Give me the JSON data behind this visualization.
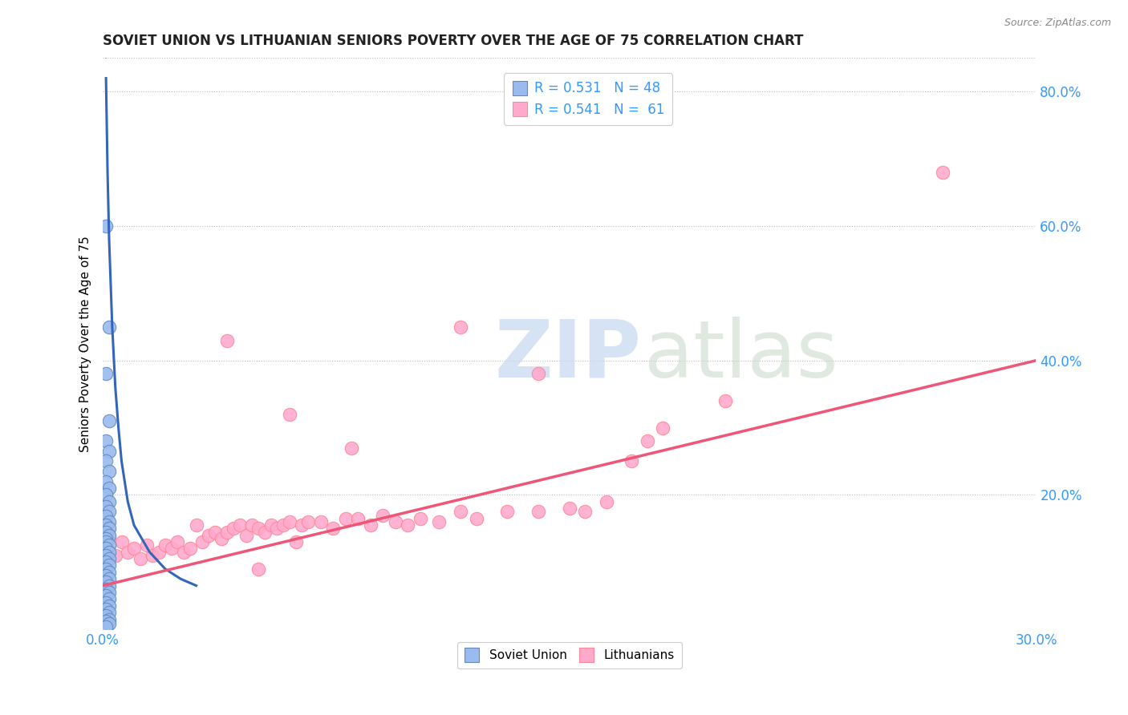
{
  "title": "SOVIET UNION VS LITHUANIAN SENIORS POVERTY OVER THE AGE OF 75 CORRELATION CHART",
  "source": "Source: ZipAtlas.com",
  "ylabel": "Seniors Poverty Over the Age of 75",
  "xlabel": "",
  "xlim": [
    0.0,
    0.3
  ],
  "ylim": [
    0.0,
    0.85
  ],
  "xtick_positions": [
    0.0,
    0.3
  ],
  "xtick_labels": [
    "0.0%",
    "30.0%"
  ],
  "ytick_positions": [
    0.2,
    0.4,
    0.6,
    0.8
  ],
  "ytick_labels": [
    "20.0%",
    "40.0%",
    "60.0%",
    "80.0%"
  ],
  "legend_color": "#3399ff",
  "soviet_color": "#99BBEE",
  "lith_color": "#FFAACC",
  "soviet_edge": "#6688BB",
  "lith_edge": "#FF8899",
  "trend_blue": "#3366BB",
  "trend_pink": "#EE5577",
  "background": "#ffffff",
  "grid_color": "#bbbbbb",
  "soviet_x": [
    0.001,
    0.002,
    0.001,
    0.002,
    0.001,
    0.002,
    0.001,
    0.002,
    0.001,
    0.002,
    0.001,
    0.002,
    0.001,
    0.002,
    0.001,
    0.002,
    0.001,
    0.002,
    0.001,
    0.002,
    0.001,
    0.001,
    0.002,
    0.001,
    0.002,
    0.001,
    0.002,
    0.001,
    0.002,
    0.001,
    0.002,
    0.001,
    0.002,
    0.001,
    0.002,
    0.001,
    0.002,
    0.001,
    0.002,
    0.001,
    0.002,
    0.001,
    0.002,
    0.001,
    0.002,
    0.001,
    0.002,
    0.001
  ],
  "soviet_y": [
    0.6,
    0.45,
    0.38,
    0.31,
    0.28,
    0.265,
    0.25,
    0.235,
    0.22,
    0.21,
    0.2,
    0.19,
    0.182,
    0.175,
    0.168,
    0.16,
    0.155,
    0.15,
    0.145,
    0.14,
    0.135,
    0.13,
    0.125,
    0.12,
    0.115,
    0.11,
    0.105,
    0.1,
    0.095,
    0.09,
    0.085,
    0.08,
    0.075,
    0.07,
    0.065,
    0.06,
    0.055,
    0.05,
    0.045,
    0.04,
    0.035,
    0.03,
    0.025,
    0.02,
    0.015,
    0.012,
    0.008,
    0.004
  ],
  "lith_x": [
    0.002,
    0.004,
    0.006,
    0.008,
    0.01,
    0.012,
    0.014,
    0.016,
    0.018,
    0.02,
    0.022,
    0.024,
    0.026,
    0.028,
    0.03,
    0.032,
    0.034,
    0.036,
    0.038,
    0.04,
    0.042,
    0.044,
    0.046,
    0.048,
    0.05,
    0.052,
    0.054,
    0.056,
    0.058,
    0.06,
    0.062,
    0.064,
    0.066,
    0.07,
    0.074,
    0.078,
    0.082,
    0.086,
    0.09,
    0.094,
    0.098,
    0.102,
    0.108,
    0.115,
    0.12,
    0.13,
    0.14,
    0.15,
    0.155,
    0.162,
    0.17,
    0.175,
    0.18,
    0.2,
    0.27,
    0.115,
    0.14,
    0.08,
    0.04,
    0.06,
    0.05
  ],
  "lith_y": [
    0.135,
    0.11,
    0.13,
    0.115,
    0.12,
    0.105,
    0.125,
    0.11,
    0.115,
    0.125,
    0.12,
    0.13,
    0.115,
    0.12,
    0.155,
    0.13,
    0.14,
    0.145,
    0.135,
    0.145,
    0.15,
    0.155,
    0.14,
    0.155,
    0.15,
    0.145,
    0.155,
    0.15,
    0.155,
    0.16,
    0.13,
    0.155,
    0.16,
    0.16,
    0.15,
    0.165,
    0.165,
    0.155,
    0.17,
    0.16,
    0.155,
    0.165,
    0.16,
    0.175,
    0.165,
    0.175,
    0.175,
    0.18,
    0.175,
    0.19,
    0.25,
    0.28,
    0.3,
    0.34,
    0.68,
    0.45,
    0.38,
    0.27,
    0.43,
    0.32,
    0.09
  ],
  "blue_trend_x": [
    0.0005,
    0.001,
    0.0015,
    0.002,
    0.003,
    0.004,
    0.005,
    0.006,
    0.008,
    0.01,
    0.015,
    0.02,
    0.025,
    0.03
  ],
  "blue_trend_y": [
    1.2,
    0.82,
    0.68,
    0.58,
    0.45,
    0.36,
    0.3,
    0.25,
    0.19,
    0.155,
    0.115,
    0.09,
    0.075,
    0.065
  ],
  "pink_trend_x": [
    0.0,
    0.3
  ],
  "pink_trend_y": [
    0.065,
    0.4
  ]
}
